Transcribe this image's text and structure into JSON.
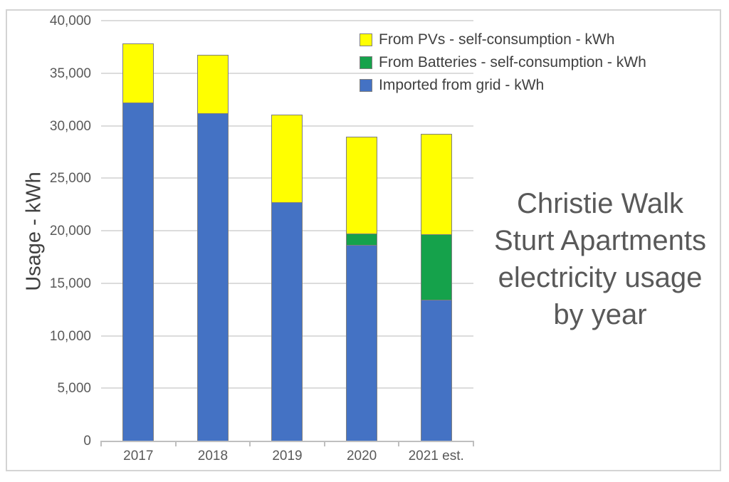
{
  "y_axis_title": "Usage - kWh",
  "title": {
    "text": "Christie Walk Sturt Apartments electricity usage by year",
    "lines": [
      "Christie Walk",
      "Sturt Apartments",
      "electricity usage",
      "by year"
    ]
  },
  "chart_data": {
    "type": "bar",
    "stacked": true,
    "title": "Christie Walk Sturt Apartments electricity usage by year",
    "ylabel": "Usage - kWh",
    "xlabel": "",
    "categories": [
      "2017",
      "2018",
      "2019",
      "2020",
      "2021 est."
    ],
    "series": [
      {
        "name": "Imported from grid - kWh",
        "color": "#4472C4",
        "values": [
          32300,
          31250,
          22800,
          18700,
          13500
        ]
      },
      {
        "name": "From Batteries - self-consumption - kWh",
        "color": "#15A24B",
        "values": [
          0,
          0,
          0,
          1150,
          6300
        ]
      },
      {
        "name": "From PVs - self-consumption - kWh",
        "color": "#FFFF00",
        "values": [
          5700,
          5650,
          8400,
          9300,
          9600
        ]
      }
    ],
    "stack_totals": [
      38000,
      36900,
      31200,
      29150,
      29400
    ],
    "ylim": [
      0,
      40000
    ],
    "yticks": [
      {
        "value": 0,
        "label": "0"
      },
      {
        "value": 5000,
        "label": "5,000"
      },
      {
        "value": 10000,
        "label": "10,000"
      },
      {
        "value": 15000,
        "label": "15,000"
      },
      {
        "value": 20000,
        "label": "20,000"
      },
      {
        "value": 25000,
        "label": "25,000"
      },
      {
        "value": 30000,
        "label": "30,000"
      },
      {
        "value": 35000,
        "label": "35,000"
      },
      {
        "value": 40000,
        "label": "40,000"
      }
    ],
    "grid": true,
    "legend_position": "top-right",
    "legend_order": [
      "From PVs - self-consumption - kWh",
      "From Batteries - self-consumption - kWh",
      "Imported from grid - kWh"
    ]
  },
  "colors": {
    "grid_line": "#DCDCDC",
    "axis_line": "#BFBFBF",
    "tick_text": "#595959",
    "title_text": "#595959",
    "legend_text": "#404040",
    "bar_border": "#7F7F7F",
    "frame_border": "#D4D4D4"
  }
}
